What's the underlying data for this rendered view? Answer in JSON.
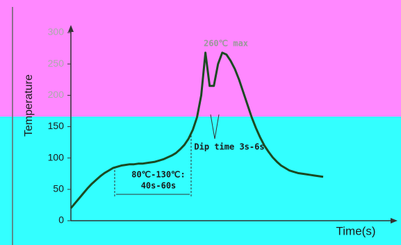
{
  "chart_data": {
    "type": "line",
    "y_label": "Temperature",
    "x_label": "Time(s)",
    "annotations": [
      "260℃ max",
      "Dip time 3s-6s",
      "80℃-130℃:",
      "40s-60s"
    ],
    "categories": [
      null,
      null,
      null,
      null,
      null,
      null,
      null,
      null,
      null,
      null,
      null,
      null,
      null,
      null,
      null,
      null,
      null,
      null,
      null,
      null,
      null,
      null,
      null,
      null,
      null,
      null,
      null,
      null,
      null,
      null,
      null,
      null,
      null,
      null,
      null,
      null,
      null,
      null,
      null,
      null,
      null,
      null,
      null,
      null,
      null,
      null,
      null,
      null,
      null,
      null,
      null,
      null,
      null,
      null,
      null,
      null,
      null,
      null,
      null,
      null,
      null
    ],
    "series": [
      {
        "name": null,
        "color": "#1b4a22",
        "values": [
          20,
          28,
          36,
          44,
          52,
          59,
          65,
          71,
          76,
          80,
          84,
          86,
          88,
          89,
          90,
          90,
          91,
          91,
          92,
          93,
          94,
          96,
          98,
          101,
          104,
          108,
          114,
          121,
          131,
          145,
          165,
          200,
          268,
          215,
          215,
          250,
          268,
          265,
          255,
          242,
          225,
          205,
          185,
          165,
          148,
          133,
          120,
          110,
          101,
          94,
          88,
          84,
          80,
          78,
          76,
          75,
          74,
          73,
          72,
          71,
          70
        ]
      }
    ],
    "ylim": [
      0,
      300
    ],
    "yticks": [
      0,
      50,
      100,
      150,
      200,
      250,
      300
    ]
  }
}
